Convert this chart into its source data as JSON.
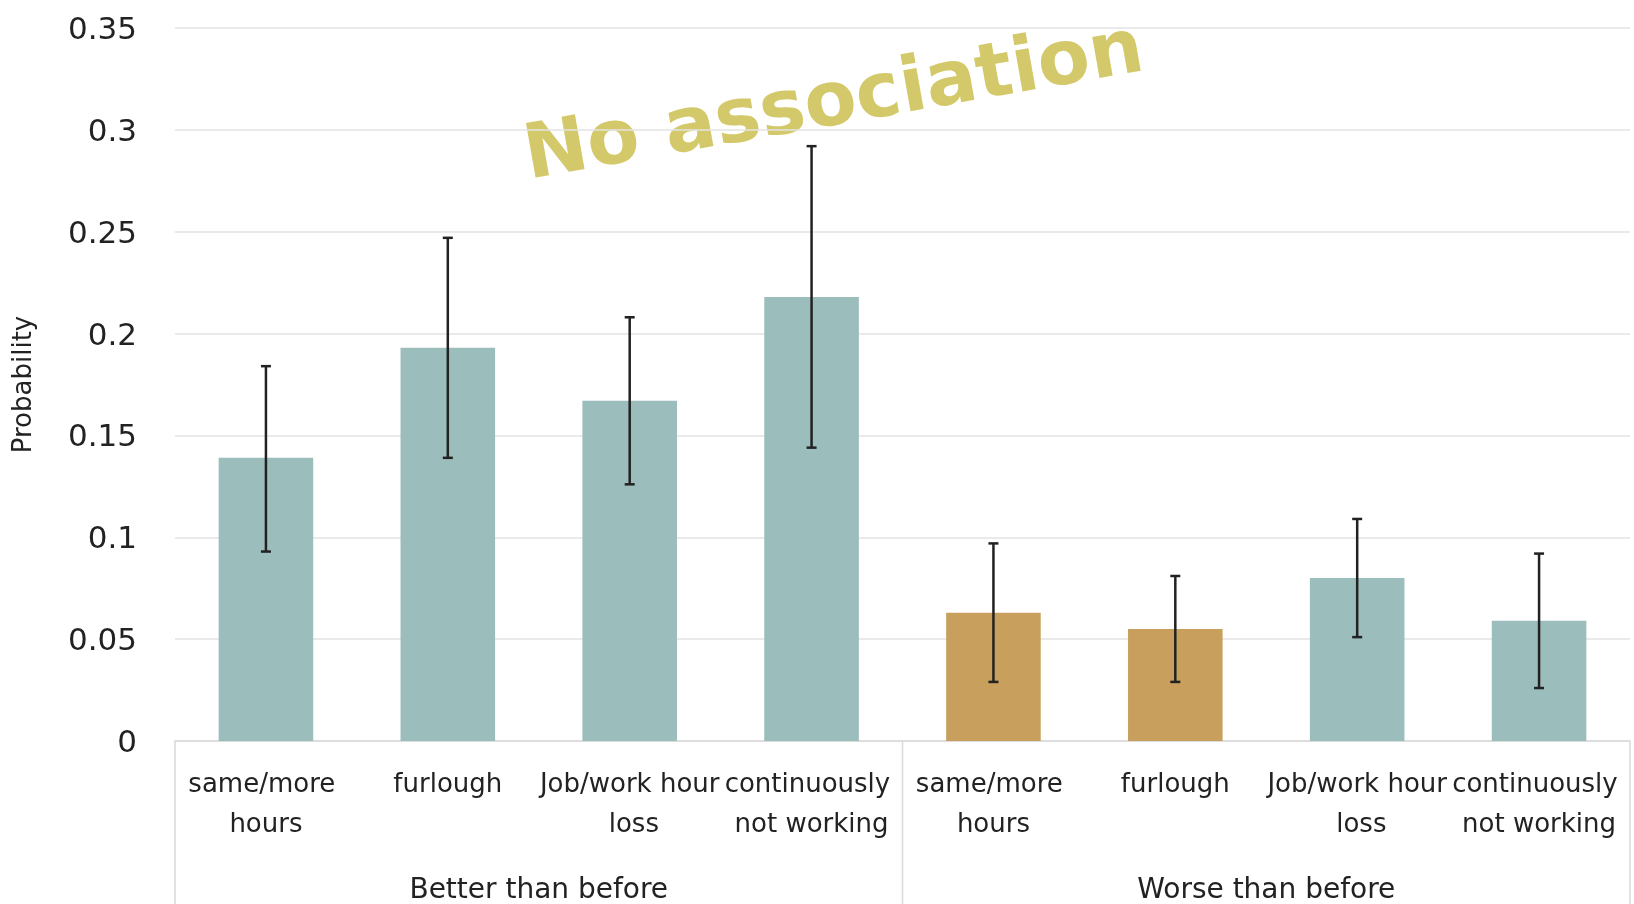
{
  "chart_data": {
    "type": "bar",
    "ylabel": "Probability",
    "categories": [
      "same/more hours",
      "furlough",
      "Job/work hour loss",
      "continuously not working",
      "same/more hours",
      "furlough",
      "Job/work hour loss",
      "continuously not working"
    ],
    "values": [
      0.139,
      0.193,
      0.167,
      0.218,
      0.063,
      0.055,
      0.08,
      0.059
    ],
    "colors": [
      "#9bbdbb",
      "#9bbdbb",
      "#9bbdbb",
      "#9bbdbb",
      "#c89f5d",
      "#c89f5d",
      "#9bbdbb",
      "#9bbdbb"
    ],
    "errors": [
      [
        0.093,
        0.184
      ],
      [
        0.139,
        0.247
      ],
      [
        0.126,
        0.208
      ],
      [
        0.144,
        0.292
      ],
      [
        0.029,
        0.097
      ],
      [
        0.029,
        0.081
      ],
      [
        0.051,
        0.109
      ],
      [
        0.026,
        0.092
      ]
    ],
    "ylim": [
      0,
      0.35
    ],
    "yticks": [
      0,
      0.05,
      0.1,
      0.15,
      0.2,
      0.25,
      0.3,
      0.35
    ],
    "grid": "y",
    "annotations": [
      "No association",
      "Better than before",
      "Worse than before"
    ]
  }
}
